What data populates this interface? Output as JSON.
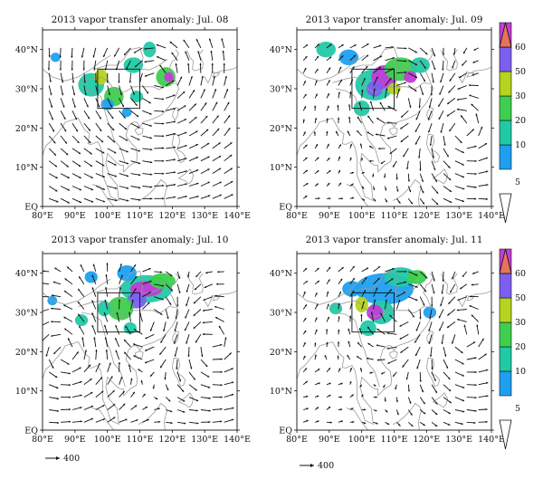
{
  "figure": {
    "panels": [
      {
        "title": "2013 vapor transfer anomaly: Jul. 08"
      },
      {
        "title": "2013 vapor transfer anomaly: Jul. 09"
      },
      {
        "title": "2013 vapor transfer anomaly: Jul. 10"
      },
      {
        "title": "2013 vapor transfer anomaly: Jul. 11"
      }
    ],
    "x_ticks": [
      "80°E",
      "90°E",
      "100°E",
      "110°E",
      "120°E",
      "130°E",
      "140°E"
    ],
    "y_ticks": [
      "EQ",
      "10°N",
      "20°N",
      "30°N",
      "40°N"
    ],
    "colorbar": {
      "levels": [
        "5",
        "10",
        "20",
        "30",
        "50",
        "60"
      ],
      "colors": [
        "#ffffff",
        "#1ea0f0",
        "#22c9a6",
        "#3fce4f",
        "#b5d31f",
        "#7d5ff0",
        "#c23cd8",
        "#e8735a"
      ]
    },
    "reference_vector": {
      "label": "400"
    },
    "colors": {
      "coast": "#9a9a9a",
      "arrow": "#111111",
      "box": "#111111"
    }
  }
}
